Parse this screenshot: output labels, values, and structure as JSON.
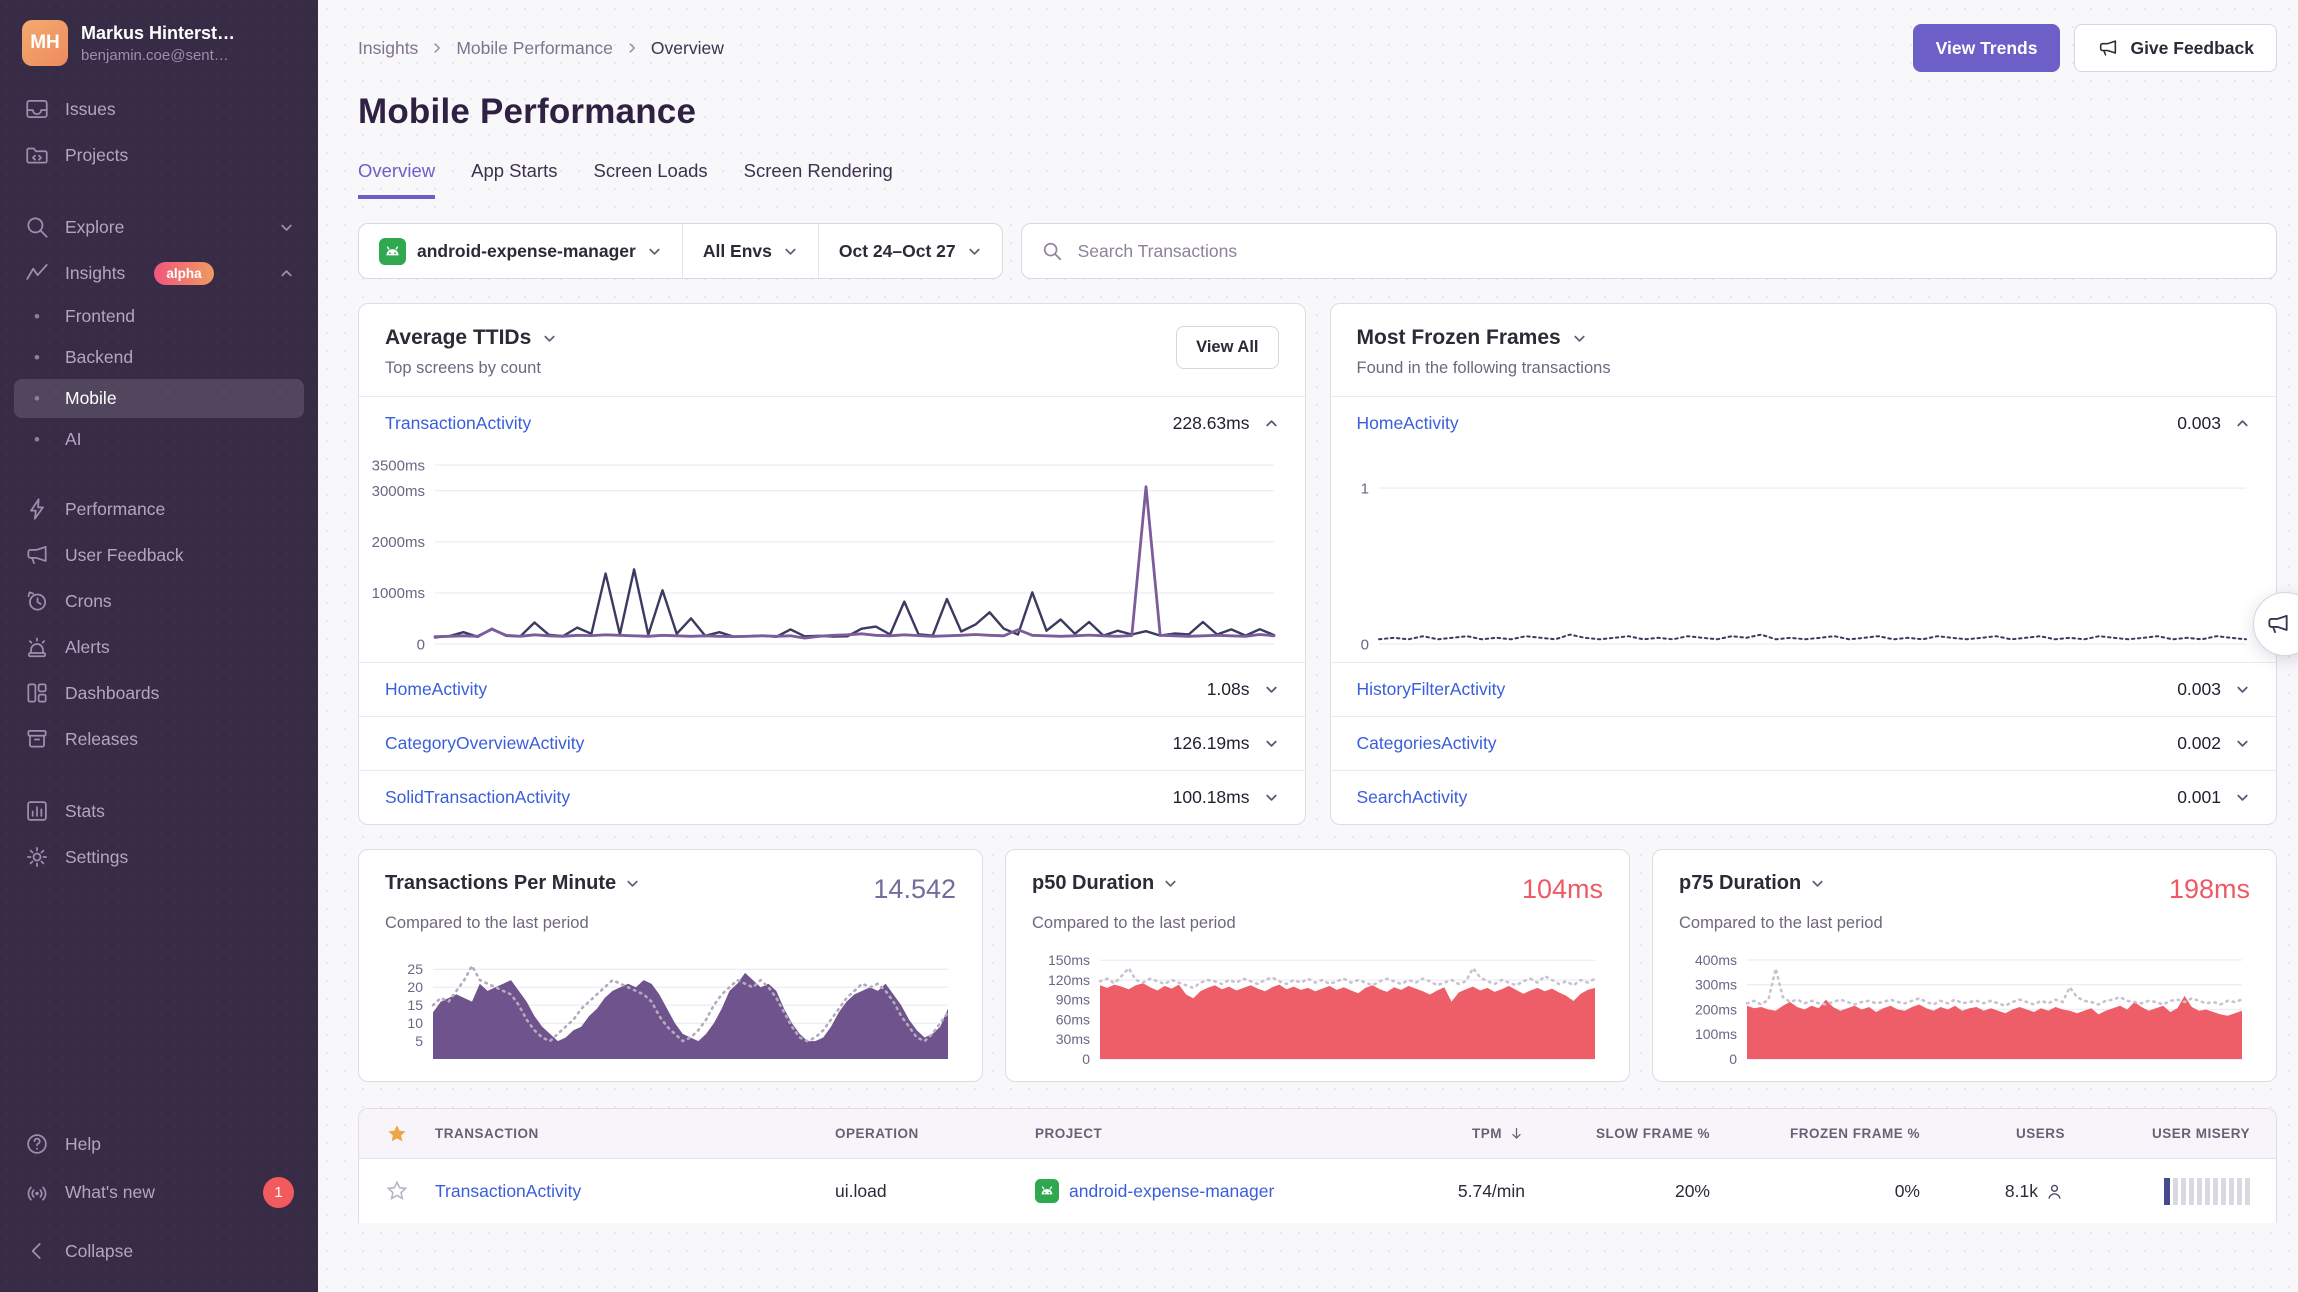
{
  "colors": {
    "accent_purple": "#6c5fc7",
    "red": "#ee5966",
    "chart_navy": "#3b3a60",
    "chart_purple_line": "#7d5c9b",
    "chart_purple_fill": "#6e538c",
    "chart_red_fill": "#ed5e68",
    "link_blue": "#3a5edb",
    "sidebar_bg": "#382b45"
  },
  "sidebar": {
    "user": {
      "initials": "MH",
      "name": "Markus Hinterst…",
      "email": "benjamin.coe@sent…"
    },
    "items": [
      {
        "label": "Issues"
      },
      {
        "label": "Projects"
      },
      {
        "label": "Explore"
      },
      {
        "label": "Insights",
        "badge": "alpha"
      },
      {
        "label": "Frontend"
      },
      {
        "label": "Backend"
      },
      {
        "label": "Mobile"
      },
      {
        "label": "AI"
      },
      {
        "label": "Performance"
      },
      {
        "label": "User Feedback"
      },
      {
        "label": "Crons"
      },
      {
        "label": "Alerts"
      },
      {
        "label": "Dashboards"
      },
      {
        "label": "Releases"
      },
      {
        "label": "Stats"
      },
      {
        "label": "Settings"
      }
    ],
    "footer": {
      "help": "Help",
      "whats_new": "What's new",
      "whats_new_badge": "1",
      "collapse": "Collapse"
    }
  },
  "header": {
    "breadcrumb": [
      "Insights",
      "Mobile Performance",
      "Overview"
    ],
    "title": "Mobile Performance",
    "view_trends": "View Trends",
    "give_feedback": "Give Feedback"
  },
  "tabs": [
    {
      "label": "Overview"
    },
    {
      "label": "App Starts"
    },
    {
      "label": "Screen Loads"
    },
    {
      "label": "Screen Rendering"
    }
  ],
  "filters": {
    "project": "android-expense-manager",
    "environment": "All Envs",
    "date_range": "Oct 24–Oct 27",
    "search_placeholder": "Search Transactions"
  },
  "ttid_card": {
    "title": "Average TTIDs",
    "subtitle": "Top screens by count",
    "view_all": "View All",
    "rows": [
      {
        "name": "TransactionActivity",
        "value": "228.63ms",
        "expanded": true
      },
      {
        "name": "HomeActivity",
        "value": "1.08s"
      },
      {
        "name": "CategoryOverviewActivity",
        "value": "126.19ms"
      },
      {
        "name": "SolidTransactionActivity",
        "value": "100.18ms"
      }
    ],
    "chart": {
      "type": "line",
      "ymax": 3600,
      "padL": 70,
      "fs": 15,
      "ticks": [
        {
          "v": 3500,
          "t": "3500ms"
        },
        {
          "v": 3000,
          "t": "3000ms"
        },
        {
          "v": 2000,
          "t": "2000ms"
        },
        {
          "v": 1000,
          "t": "1000ms"
        },
        {
          "v": 0,
          "t": "0"
        }
      ],
      "series": [
        {
          "name": "TTID",
          "color": "#3b3a60",
          "width": 2.4,
          "values": [
            130,
            155,
            230,
            140,
            300,
            160,
            150,
            420,
            180,
            155,
            320,
            200,
            1380,
            190,
            1460,
            180,
            1050,
            200,
            500,
            160,
            230,
            145,
            150,
            165,
            140,
            285,
            150,
            160,
            145,
            150,
            300,
            340,
            185,
            830,
            190,
            165,
            880,
            245,
            380,
            620,
            300,
            185,
            1010,
            260,
            480,
            200,
            430,
            165,
            260,
            185,
            250,
            165,
            205,
            185,
            430,
            185,
            285,
            165,
            290,
            175
          ]
        },
        {
          "name": "TTFD",
          "color": "#7d5c9b",
          "width": 2.8,
          "values": [
            145,
            150,
            160,
            150,
            290,
            170,
            150,
            180,
            160,
            150,
            170,
            165,
            180,
            170,
            160,
            150,
            170,
            160,
            150,
            160,
            150,
            145,
            150,
            160,
            150,
            160,
            115,
            150,
            170,
            180,
            200,
            170,
            160,
            180,
            165,
            150,
            160,
            170,
            185,
            170,
            160,
            280,
            170,
            160,
            150,
            160,
            175,
            160,
            150,
            165,
            3080,
            170,
            160,
            150,
            160,
            170,
            160,
            150,
            185,
            160
          ]
        }
      ]
    }
  },
  "frozen_card": {
    "title": "Most Frozen Frames",
    "subtitle": "Found in the following transactions",
    "rows": [
      {
        "name": "HomeActivity",
        "value": "0.003",
        "expanded": true
      },
      {
        "name": "HistoryFilterActivity",
        "value": "0.003"
      },
      {
        "name": "CategoriesActivity",
        "value": "0.002"
      },
      {
        "name": "SearchActivity",
        "value": "0.001"
      }
    ],
    "chart": {
      "type": "line",
      "ymax": 1.18,
      "padL": 42,
      "fs": 15,
      "ticks": [
        {
          "v": 1,
          "t": "1"
        },
        {
          "v": 0,
          "t": "0"
        }
      ],
      "series": [
        {
          "name": "frozen frame rate",
          "color": "#3b3a60",
          "width": 2,
          "dash": "2.5 3.5",
          "values": [
            0.03,
            0.04,
            0.03,
            0.05,
            0.03,
            0.04,
            0.05,
            0.03,
            0.04,
            0.03,
            0.05,
            0.04,
            0.03,
            0.06,
            0.04,
            0.03,
            0.04,
            0.05,
            0.03,
            0.04,
            0.03,
            0.05,
            0.04,
            0.03,
            0.05,
            0.04,
            0.06,
            0.03,
            0.04,
            0.03,
            0.04,
            0.05,
            0.03,
            0.04,
            0.05,
            0.03,
            0.04,
            0.03,
            0.05,
            0.04,
            0.03,
            0.04,
            0.05,
            0.03,
            0.04,
            0.05,
            0.03,
            0.04,
            0.03,
            0.05,
            0.04,
            0.03,
            0.04,
            0.05,
            0.03,
            0.04,
            0.03,
            0.05,
            0.04,
            0.03
          ]
        }
      ]
    }
  },
  "metric_cards": [
    {
      "title": "Transactions Per Minute",
      "subtitle": "Compared to the last period",
      "value": "14.542",
      "chart": {
        "type": "area",
        "ymax": 29,
        "padL": 48,
        "fs": 14,
        "ticks": [
          {
            "v": 25,
            "t": "25"
          },
          {
            "v": 20,
            "t": "20"
          },
          {
            "v": 15,
            "t": "15"
          },
          {
            "v": 10,
            "t": "10"
          },
          {
            "v": 5,
            "t": "5"
          }
        ],
        "series": [
          {
            "name": "current",
            "color": "#6e538c",
            "area": true,
            "values": [
              13,
              16,
              17,
              18,
              17,
              16,
              21,
              19,
              20,
              21,
              22,
              19,
              16,
              12,
              9,
              7,
              5,
              6,
              8,
              9,
              12,
              14,
              17,
              19,
              20,
              21,
              20,
              22,
              21,
              18,
              14,
              10,
              7,
              6,
              5,
              7,
              10,
              14,
              19,
              21,
              24,
              22,
              20,
              21,
              19,
              14,
              10,
              7,
              5,
              5,
              6,
              9,
              13,
              16,
              18,
              19,
              20,
              19,
              21,
              18,
              15,
              11,
              8,
              6,
              7,
              9,
              14
            ]
          },
          {
            "name": "previous",
            "color": "#b4abbf",
            "width": 2.6,
            "dash": "1.5 5",
            "values": [
              15,
              17,
              16,
              19,
              22,
              26,
              22,
              21,
              20,
              19,
              18,
              15,
              11,
              8,
              6,
              5,
              7,
              9,
              11,
              14,
              16,
              18,
              20,
              22,
              21,
              20,
              19,
              18,
              16,
              12,
              9,
              7,
              5,
              6,
              8,
              11,
              15,
              18,
              20,
              22,
              21,
              20,
              22,
              20,
              17,
              13,
              9,
              6,
              5,
              6,
              8,
              11,
              14,
              17,
              19,
              21,
              20,
              21,
              19,
              16,
              12,
              9,
              6,
              5,
              7,
              10,
              13
            ]
          }
        ]
      }
    },
    {
      "title": "p50 Duration",
      "subtitle": "Compared to the last period",
      "value": "104ms",
      "chart": {
        "type": "area",
        "ymax": 158,
        "padL": 68,
        "fs": 14,
        "ticks": [
          {
            "v": 150,
            "t": "150ms"
          },
          {
            "v": 120,
            "t": "120ms"
          },
          {
            "v": 90,
            "t": "90ms"
          },
          {
            "v": 60,
            "t": "60ms"
          },
          {
            "v": 30,
            "t": "30ms"
          },
          {
            "v": 0,
            "t": "0"
          }
        ],
        "series": [
          {
            "name": "current",
            "color": "#ed5e68",
            "area": true,
            "values": [
              112,
              108,
              113,
              110,
              106,
              112,
              115,
              109,
              104,
              111,
              107,
              113,
              98,
              92,
              103,
              108,
              112,
              106,
              110,
              104,
              108,
              112,
              107,
              103,
              109,
              113,
              106,
              110,
              105,
              108,
              103,
              107,
              111,
              105,
              109,
              104,
              100,
              108,
              112,
              106,
              102,
              109,
              105,
              111,
              107,
              103,
              98,
              104,
              109,
              87,
              101,
              106,
              110,
              104,
              108,
              102,
              106,
              111,
              105,
              99,
              104,
              108,
              103,
              107,
              101,
              96,
              88,
              99,
              105,
              108
            ]
          },
          {
            "name": "previous",
            "color": "#c9c2cf",
            "width": 2.6,
            "dash": "1.5 5",
            "values": [
              118,
              122,
              115,
              126,
              138,
              120,
              116,
              122,
              118,
              114,
              120,
              116,
              112,
              108,
              116,
              120,
              118,
              114,
              120,
              116,
              122,
              118,
              114,
              120,
              124,
              118,
              114,
              120,
              116,
              122,
              116,
              120,
              114,
              118,
              122,
              116,
              120,
              116,
              112,
              118,
              122,
              118,
              114,
              120,
              116,
              122,
              118,
              112,
              116,
              120,
              114,
              118,
              138,
              124,
              118,
              114,
              120,
              116,
              112,
              118,
              122,
              116,
              126,
              120,
              114,
              118,
              112,
              120,
              116,
              122
            ]
          }
        ]
      }
    },
    {
      "title": "p75 Duration",
      "subtitle": "Compared to the last period",
      "value": "198ms",
      "chart": {
        "type": "area",
        "ymax": 420,
        "padL": 68,
        "fs": 14,
        "ticks": [
          {
            "v": 400,
            "t": "400ms"
          },
          {
            "v": 300,
            "t": "300ms"
          },
          {
            "v": 200,
            "t": "200ms"
          },
          {
            "v": 100,
            "t": "100ms"
          },
          {
            "v": 0,
            "t": "0"
          }
        ],
        "series": [
          {
            "name": "current",
            "color": "#ed5e68",
            "area": true,
            "values": [
              215,
              205,
              210,
              200,
              195,
              215,
              230,
              210,
              200,
              215,
              205,
              240,
              210,
              195,
              205,
              215,
              200,
              210,
              190,
              205,
              215,
              200,
              195,
              210,
              220,
              205,
              195,
              210,
              200,
              215,
              195,
              205,
              210,
              195,
              205,
              195,
              185,
              200,
              210,
              200,
              190,
              205,
              195,
              210,
              200,
              195,
              185,
              195,
              205,
              180,
              195,
              205,
              215,
              200,
              230,
              210,
              195,
              205,
              215,
              190,
              205,
              255,
              210,
              195,
              200,
              190,
              180,
              175,
              185,
              195
            ]
          },
          {
            "name": "previous",
            "color": "#c9c2cf",
            "width": 2.6,
            "dash": "1.5 5",
            "values": [
              225,
              235,
              220,
              240,
              365,
              250,
              230,
              240,
              225,
              235,
              225,
              220,
              230,
              240,
              230,
              220,
              230,
              235,
              225,
              230,
              240,
              230,
              225,
              235,
              245,
              230,
              220,
              235,
              225,
              240,
              225,
              230,
              235,
              225,
              235,
              225,
              215,
              230,
              240,
              230,
              220,
              235,
              225,
              240,
              230,
              290,
              250,
              235,
              230,
              220,
              235,
              240,
              250,
              235,
              230,
              225,
              235,
              230,
              220,
              235,
              240,
              230,
              245,
              235,
              225,
              230,
              220,
              235,
              230,
              240
            ]
          }
        ]
      }
    }
  ],
  "table": {
    "columns": [
      "TRANSACTION",
      "OPERATION",
      "PROJECT",
      "TPM",
      "SLOW FRAME %",
      "FROZEN FRAME %",
      "USERS",
      "USER MISERY"
    ],
    "sorted_column": "TPM",
    "rows": [
      {
        "transaction": "TransactionActivity",
        "operation": "ui.load",
        "project": "android-expense-manager",
        "tpm": "5.74/min",
        "slow_frame": "20%",
        "frozen_frame": "0%",
        "users": "8.1k"
      }
    ]
  }
}
